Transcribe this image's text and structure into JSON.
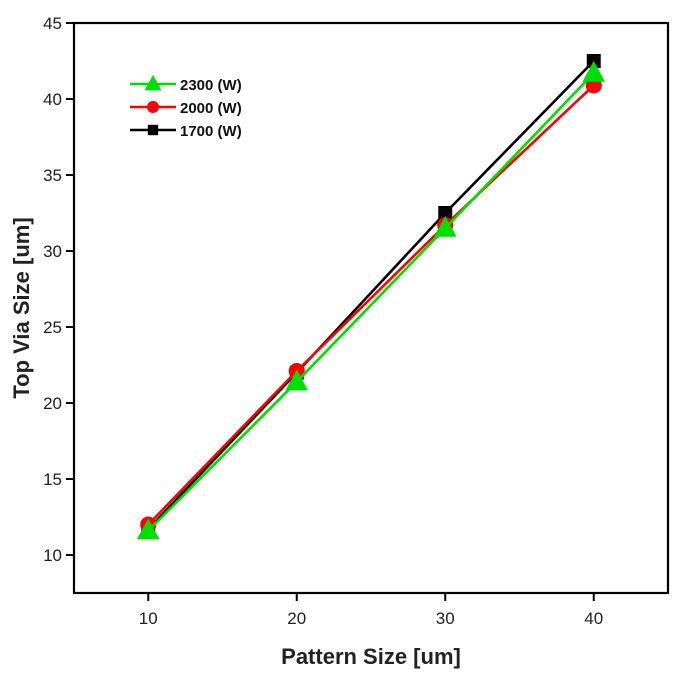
{
  "chart_data": {
    "type": "line",
    "title": "",
    "xlabel": "Pattern Size [um]",
    "ylabel": "Top Via Size [um]",
    "xlim": [
      5,
      45
    ],
    "ylim": [
      7.5,
      45
    ],
    "xticks": [
      10,
      20,
      30,
      40
    ],
    "yticks": [
      10,
      15,
      20,
      25,
      30,
      35,
      40,
      45
    ],
    "x": [
      10,
      20,
      30,
      40
    ],
    "grid": false,
    "legend_position": "top-left",
    "series": [
      {
        "name": "2300 (W)",
        "values": [
          11.6,
          21.4,
          31.5,
          41.7
        ],
        "color": "#00e000",
        "marker": "triangle"
      },
      {
        "name": "2000 (W)",
        "values": [
          12.0,
          22.1,
          31.7,
          40.9
        ],
        "color": "#ff0000",
        "marker": "circle"
      },
      {
        "name": "1700 (W)",
        "values": [
          11.7,
          22.0,
          32.5,
          42.5
        ],
        "color": "#000000",
        "marker": "square"
      }
    ]
  }
}
